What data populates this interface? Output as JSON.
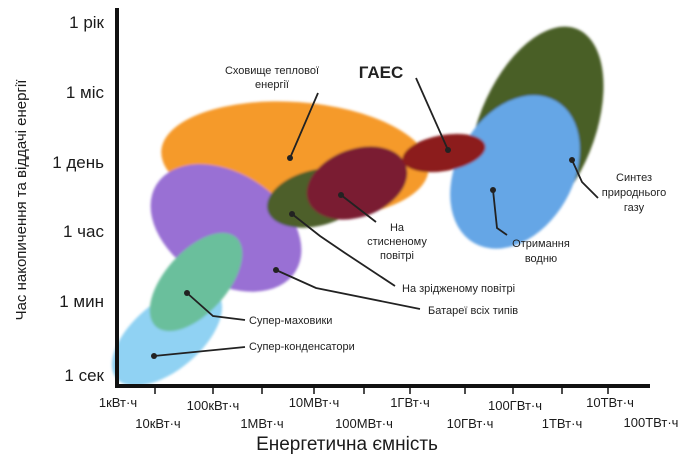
{
  "chart_data": {
    "type": "scatter",
    "xlabel": "Енергетична ємність",
    "ylabel": "Час накопичення та віддачі енергії",
    "x_ticks": [
      "1кВт·ч",
      "10кВт·ч",
      "100кВт·ч",
      "1МВт·ч",
      "10МВт·ч",
      "100МВт·ч",
      "1ГВт·ч",
      "10ГВт·ч",
      "100ГВт·ч",
      "1ТВт·ч",
      "10ТВт·ч",
      "100ТВт·ч"
    ],
    "y_ticks": [
      "1 сек",
      "1 мин",
      "1 час",
      "1 день",
      "1 міс",
      "1 рік"
    ],
    "regions": [
      {
        "name": "Синтез природнього газу",
        "color": "#4a5e26",
        "x_range_log10_kWh": [
          7.6,
          9.0
        ],
        "y_range": [
          "~1 день",
          "~1 рік"
        ]
      },
      {
        "name": "Отримання водню",
        "color": "#65a6e6",
        "x_range_log10_kWh": [
          7.45,
          8.6
        ],
        "y_range": [
          "~1 час",
          "~1 міс"
        ]
      },
      {
        "name": "Сховище теплової енергії",
        "color": "#f59a2a",
        "x_range_log10_kWh": [
          2.5,
          6.3
        ],
        "y_range": [
          "~1 час",
          "~1 міс"
        ]
      },
      {
        "name": "ГАЕС",
        "color": "#8c1b1d",
        "x_range_log10_kWh": [
          5.8,
          7.2
        ],
        "y_range": [
          "~1 час",
          "~1 день"
        ]
      },
      {
        "name": "На стисненому повітрі",
        "color": "#7a1f33",
        "x_range_log10_kWh": [
          4.8,
          6.3
        ],
        "y_range": [
          "~1 час",
          "~1 день"
        ]
      },
      {
        "name": "На зрідженому повітрі",
        "color": "#4d5f2b",
        "x_range_log10_kWh": [
          3.9,
          6.1
        ],
        "y_range": [
          "~1 час",
          "~1 день"
        ]
      },
      {
        "name": "Батареї всіх типів",
        "color": "#9970d4",
        "x_range_log10_kWh": [
          2.5,
          4.5
        ],
        "y_range": [
          "~1 мин",
          "~1 день"
        ]
      },
      {
        "name": "Супер-маховики",
        "color": "#6bbf9c",
        "x_range_log10_kWh": [
          1.2,
          2.9
        ],
        "y_range": [
          "~1 мин",
          "~1 час"
        ]
      },
      {
        "name": "Супер-конденсатори",
        "color": "#90d2f3",
        "x_range_log10_kWh": [
          0.6,
          2.6
        ],
        "y_range": [
          "~1 сек",
          "~1 мин"
        ]
      }
    ],
    "labels": {
      "thermal": [
        "Сховище теплової",
        "енергії"
      ],
      "pumped_hydro": "ГАЕС",
      "compressed_air": [
        "На",
        "стисненому",
        "повітрі"
      ],
      "liquid_air": "На зрідженому повітрі",
      "batteries": "Батареї всіх типів",
      "flywheels": "Супер-маховики",
      "supercaps": "Супер-конденсатори",
      "hydrogen": [
        "Отримання",
        "водню"
      ],
      "natural_gas": [
        "Синтез",
        "природнього",
        "газу"
      ]
    }
  }
}
